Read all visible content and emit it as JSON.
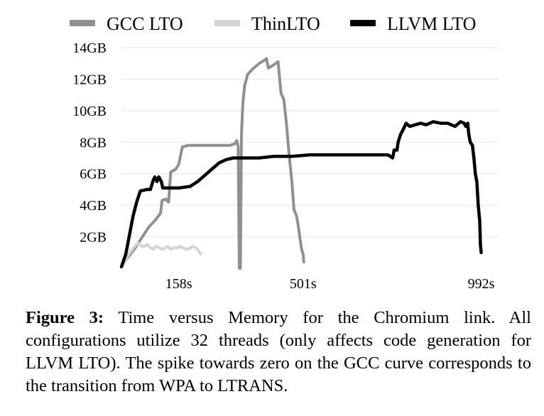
{
  "chart_data": {
    "type": "line",
    "title": "",
    "xlabel": "",
    "ylabel": "",
    "xlim": [
      0,
      1040
    ],
    "ylim": [
      0,
      14
    ],
    "y_unit": "GB",
    "grid": "horizontal",
    "legend_position": "top",
    "yticks": [
      {
        "value": 2,
        "label": "2GB"
      },
      {
        "value": 4,
        "label": "4GB"
      },
      {
        "value": 6,
        "label": "6GB"
      },
      {
        "value": 8,
        "label": "8GB"
      },
      {
        "value": 10,
        "label": "10GB"
      },
      {
        "value": 12,
        "label": "12GB"
      },
      {
        "value": 14,
        "label": "14GB"
      }
    ],
    "xticks": [
      {
        "value": 158,
        "label": "158s"
      },
      {
        "value": 501,
        "label": "501s"
      },
      {
        "value": 992,
        "label": "992s"
      }
    ],
    "series": [
      {
        "name": "GCC LTO",
        "color": "#8e918f",
        "points": [
          [
            0,
            0.1
          ],
          [
            15,
            0.6
          ],
          [
            35,
            1.2
          ],
          [
            55,
            1.9
          ],
          [
            75,
            2.6
          ],
          [
            95,
            3.1
          ],
          [
            108,
            3.5
          ],
          [
            112,
            4.3
          ],
          [
            122,
            4.4
          ],
          [
            130,
            4.2
          ],
          [
            136,
            6.1
          ],
          [
            150,
            6.3
          ],
          [
            158,
            6.6
          ],
          [
            168,
            7.7
          ],
          [
            185,
            7.8
          ],
          [
            210,
            7.8
          ],
          [
            240,
            7.8
          ],
          [
            270,
            7.8
          ],
          [
            300,
            7.8
          ],
          [
            313,
            7.9
          ],
          [
            318,
            8.1
          ],
          [
            322,
            7.7
          ],
          [
            325,
            0.0
          ],
          [
            328,
            0.0
          ],
          [
            331,
            8.5
          ],
          [
            335,
            10.5
          ],
          [
            340,
            11.6
          ],
          [
            348,
            12.3
          ],
          [
            360,
            12.6
          ],
          [
            380,
            13.0
          ],
          [
            395,
            13.2
          ],
          [
            400,
            13.3
          ],
          [
            405,
            12.7
          ],
          [
            420,
            12.9
          ],
          [
            432,
            13.1
          ],
          [
            436,
            12.1
          ],
          [
            440,
            11.1
          ],
          [
            448,
            10.7
          ],
          [
            455,
            9.2
          ],
          [
            462,
            7.3
          ],
          [
            470,
            5.5
          ],
          [
            476,
            3.7
          ],
          [
            482,
            3.4
          ],
          [
            487,
            2.8
          ],
          [
            493,
            1.8
          ],
          [
            497,
            1.2
          ],
          [
            501,
            0.9
          ],
          [
            503,
            0.4
          ]
        ]
      },
      {
        "name": "ThinLTO",
        "color": "#d3d4d3",
        "points": [
          [
            0,
            0.1
          ],
          [
            10,
            0.4
          ],
          [
            20,
            0.9
          ],
          [
            30,
            1.2
          ],
          [
            40,
            1.5
          ],
          [
            48,
            1.6
          ],
          [
            55,
            1.4
          ],
          [
            63,
            1.4
          ],
          [
            72,
            1.5
          ],
          [
            80,
            1.3
          ],
          [
            88,
            1.2
          ],
          [
            96,
            1.4
          ],
          [
            105,
            1.3
          ],
          [
            112,
            1.2
          ],
          [
            120,
            1.3
          ],
          [
            128,
            1.4
          ],
          [
            136,
            1.2
          ],
          [
            145,
            1.3
          ],
          [
            155,
            1.3
          ],
          [
            162,
            1.4
          ],
          [
            170,
            1.3
          ],
          [
            180,
            1.2
          ],
          [
            190,
            1.3
          ],
          [
            198,
            1.4
          ],
          [
            206,
            1.3
          ],
          [
            213,
            1.1
          ],
          [
            218,
            0.9
          ]
        ]
      },
      {
        "name": "LLVM LTO",
        "color": "#000000",
        "points": [
          [
            0,
            0.1
          ],
          [
            12,
            0.9
          ],
          [
            22,
            2.1
          ],
          [
            32,
            3.3
          ],
          [
            42,
            4.2
          ],
          [
            52,
            4.9
          ],
          [
            70,
            5.0
          ],
          [
            80,
            5.0
          ],
          [
            88,
            5.6
          ],
          [
            92,
            5.8
          ],
          [
            98,
            5.5
          ],
          [
            103,
            5.8
          ],
          [
            110,
            5.5
          ],
          [
            114,
            5.1
          ],
          [
            130,
            5.1
          ],
          [
            160,
            5.1
          ],
          [
            190,
            5.2
          ],
          [
            210,
            5.5
          ],
          [
            230,
            5.9
          ],
          [
            250,
            6.3
          ],
          [
            270,
            6.7
          ],
          [
            290,
            6.9
          ],
          [
            308,
            7.0
          ],
          [
            340,
            7.0
          ],
          [
            380,
            7.0
          ],
          [
            420,
            7.1
          ],
          [
            470,
            7.1
          ],
          [
            520,
            7.2
          ],
          [
            580,
            7.2
          ],
          [
            640,
            7.2
          ],
          [
            700,
            7.2
          ],
          [
            735,
            7.2
          ],
          [
            748,
            7.0
          ],
          [
            752,
            7.5
          ],
          [
            760,
            7.5
          ],
          [
            763,
            8.0
          ],
          [
            770,
            8.5
          ],
          [
            777,
            8.8
          ],
          [
            785,
            9.2
          ],
          [
            795,
            9.0
          ],
          [
            810,
            9.1
          ],
          [
            825,
            9.2
          ],
          [
            840,
            9.1
          ],
          [
            860,
            9.3
          ],
          [
            880,
            9.2
          ],
          [
            900,
            9.2
          ],
          [
            920,
            9.0
          ],
          [
            935,
            9.3
          ],
          [
            945,
            9.2
          ],
          [
            950,
            9.0
          ],
          [
            955,
            9.2
          ],
          [
            958,
            8.5
          ],
          [
            962,
            8.0
          ],
          [
            968,
            7.8
          ],
          [
            972,
            7.0
          ],
          [
            976,
            6.0
          ],
          [
            980,
            5.5
          ],
          [
            984,
            4.0
          ],
          [
            988,
            3.0
          ],
          [
            990,
            1.5
          ],
          [
            992,
            1.0
          ]
        ]
      }
    ]
  },
  "caption": {
    "label": "Figure 3:",
    "text": " Time versus Memory for the Chromium link. All configurations utilize 32 threads (only affects code generation for LLVM LTO). The spike towards zero on the GCC curve corresponds to the transition from WPA to LTRANS."
  }
}
